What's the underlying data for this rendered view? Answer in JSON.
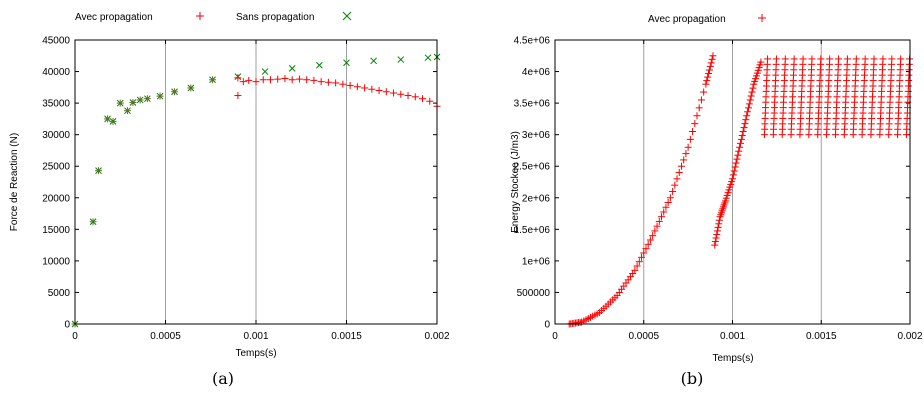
{
  "colors": {
    "red": "#ff0000",
    "green": "#008000",
    "olive": "#6b6b2a",
    "grid": "#a0a0a0"
  },
  "chart_data": [
    {
      "type": "scatter",
      "caption": "(a)",
      "xlabel": "Temps(s)",
      "ylabel": "Force de Reaction (N)",
      "xlim": [
        0,
        0.002
      ],
      "ylim": [
        0,
        45000
      ],
      "xticks": [
        0,
        0.0005,
        0.001,
        0.0015,
        0.002
      ],
      "xtick_labels": [
        "0",
        "0.0005",
        "0.001",
        "0.0015",
        "0.002"
      ],
      "yticks": [
        0,
        5000,
        10000,
        15000,
        20000,
        25000,
        30000,
        35000,
        40000,
        45000
      ],
      "ytick_labels": [
        "0",
        "5000",
        "10000",
        "15000",
        "20000",
        "25000",
        "30000",
        "35000",
        "40000",
        "45000"
      ],
      "grid": "vertical",
      "legend_position": "top",
      "series": [
        {
          "name": "Avec propagation",
          "marker": "+",
          "color": "#ff0000",
          "x": [
            0,
            0.0001,
            0.00013,
            0.00018,
            0.00021,
            0.00025,
            0.00029,
            0.00032,
            0.00036,
            0.0004,
            0.00047,
            0.00055,
            0.00064,
            0.00076,
            0.0009,
            0.0009,
            0.00093,
            0.00096,
            0.001,
            0.00104,
            0.00108,
            0.00112,
            0.00116,
            0.0012,
            0.00124,
            0.00128,
            0.00132,
            0.00136,
            0.0014,
            0.00144,
            0.00148,
            0.00152,
            0.00156,
            0.0016,
            0.00164,
            0.00168,
            0.00172,
            0.00176,
            0.0018,
            0.00184,
            0.00188,
            0.00192,
            0.00196,
            0.002
          ],
          "y": [
            0,
            16200,
            24300,
            32500,
            32100,
            35000,
            33800,
            35100,
            35500,
            35700,
            36100,
            36800,
            37400,
            38700,
            39000,
            36200,
            38400,
            38600,
            38400,
            38700,
            38700,
            38800,
            38900,
            38700,
            38800,
            38700,
            38600,
            38400,
            38300,
            38200,
            38000,
            37800,
            37600,
            37400,
            37200,
            37000,
            36800,
            36600,
            36400,
            36200,
            36000,
            35700,
            35300,
            34500
          ]
        },
        {
          "name": "Sans propagation",
          "marker": "x",
          "color": "#008000",
          "x": [
            0,
            0.0001,
            0.00013,
            0.00018,
            0.00021,
            0.00025,
            0.00029,
            0.00032,
            0.00036,
            0.0004,
            0.00047,
            0.00055,
            0.00064,
            0.00076,
            0.0009,
            0.00105,
            0.0012,
            0.00135,
            0.0015,
            0.00165,
            0.0018,
            0.00195,
            0.002
          ],
          "y": [
            0,
            16200,
            24300,
            32500,
            32100,
            35000,
            33800,
            35100,
            35500,
            35700,
            36100,
            36800,
            37400,
            38700,
            39200,
            40000,
            40500,
            41000,
            41400,
            41700,
            41900,
            42200,
            42300
          ]
        }
      ]
    },
    {
      "type": "scatter",
      "caption": "(b)",
      "xlabel": "Temps(s)",
      "ylabel": "Energy Stockee (J/m3)",
      "xlim": [
        0,
        0.002
      ],
      "ylim": [
        0,
        4500000
      ],
      "xticks": [
        0,
        0.0005,
        0.001,
        0.0015,
        0.002
      ],
      "xtick_labels": [
        "0",
        "0.0005",
        "0.001",
        "0.0015",
        "0.002"
      ],
      "yticks": [
        0,
        500000,
        1000000,
        1500000,
        2000000,
        2500000,
        3000000,
        3500000,
        4000000,
        4500000
      ],
      "ytick_labels": [
        "0",
        "500000",
        "1e+06",
        "1.5e+06",
        "2e+06",
        "2.5e+06",
        "3e+06",
        "3.5e+06",
        "4e+06",
        "4.5e+06"
      ],
      "grid": "vertical",
      "legend_position": "top",
      "series": [
        {
          "name": "Avec propagation",
          "marker": "+",
          "color": "#ff0000",
          "segments": [
            {
              "x": [
                8e-05,
                0.00015,
                0.00025,
                0.00035,
                0.00045,
                0.00055,
                0.00065,
                0.00075,
                0.00085,
                0.00089
              ],
              "y": [
                0,
                30000,
                180000,
                450000,
                850000,
                1400000,
                2000000,
                2800000,
                3800000,
                4250000
              ]
            },
            {
              "x": [
                0.0009,
                0.00093,
                0.00096,
                0.001,
                0.00104,
                0.00108,
                0.00112,
                0.00116
              ],
              "y": [
                1250000,
                1700000,
                1950000,
                2300000,
                2800000,
                3300000,
                3800000,
                4150000
              ]
            }
          ],
          "oscillation": {
            "x_start": 0.00118,
            "x_end": 0.002,
            "period": 5e-05,
            "min": 3000000,
            "max": 4200000
          }
        }
      ]
    }
  ]
}
